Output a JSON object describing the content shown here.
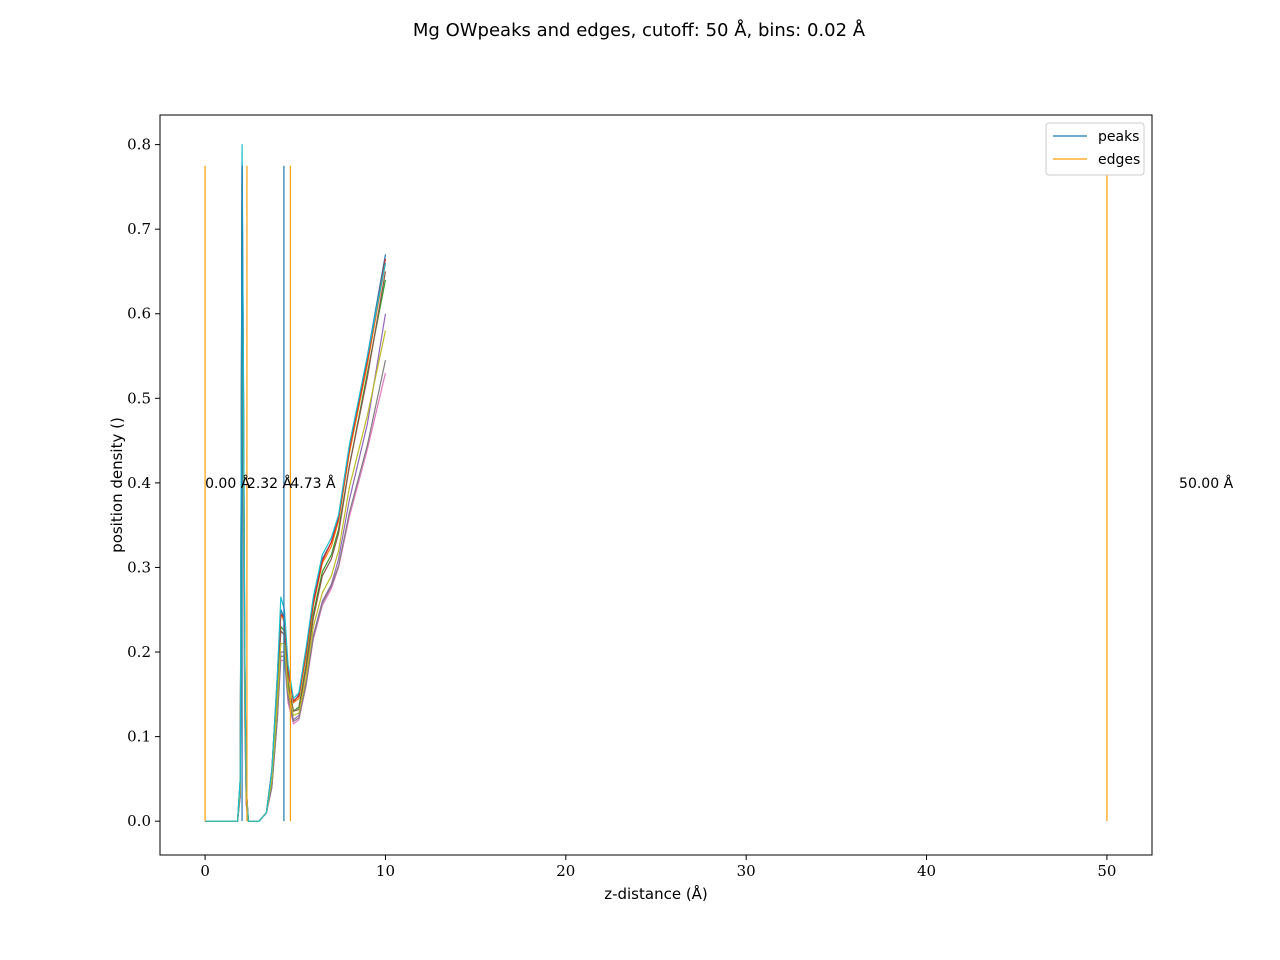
{
  "chart_data": {
    "type": "line",
    "title": "Mg OWpeaks and edges, cutoff: 50 Å, bins: 0.02 Å",
    "xlabel": "z-distance (Å)",
    "ylabel": "position density ()",
    "xlim": [
      -2.5,
      52.5
    ],
    "ylim": [
      -0.04,
      0.835
    ],
    "xticks": [
      0,
      10,
      20,
      30,
      40,
      50
    ],
    "yticks": [
      0.0,
      0.1,
      0.2,
      0.3,
      0.4,
      0.5,
      0.6,
      0.7,
      0.8
    ],
    "grid": false,
    "legend_position": "top-right",
    "legend": [
      {
        "label": "peaks",
        "color": "#1f77b4"
      },
      {
        "label": "edges",
        "color": "#ff9f0a"
      }
    ],
    "density_curves": {
      "x": [
        0.0,
        1.8,
        1.95,
        2.05,
        2.12,
        2.2,
        2.28,
        2.4,
        2.6,
        3.0,
        3.4,
        3.7,
        4.0,
        4.2,
        4.4,
        4.6,
        4.9,
        5.2,
        5.6,
        6.0,
        6.5,
        7.0,
        7.4,
        8.0,
        9.0,
        10.0
      ],
      "series": [
        {
          "color": "#1f77b4",
          "values": [
            0,
            0,
            0.05,
            0.78,
            0.55,
            0.2,
            0.04,
            0,
            0,
            0,
            0.01,
            0.06,
            0.17,
            0.25,
            0.24,
            0.18,
            0.14,
            0.15,
            0.2,
            0.26,
            0.31,
            0.33,
            0.36,
            0.44,
            0.55,
            0.67
          ]
        },
        {
          "color": "#ff7f0e",
          "values": [
            0,
            0,
            0.04,
            0.75,
            0.52,
            0.19,
            0.035,
            0,
            0,
            0,
            0.01,
            0.06,
            0.17,
            0.245,
            0.235,
            0.175,
            0.14,
            0.145,
            0.195,
            0.255,
            0.305,
            0.325,
            0.355,
            0.435,
            0.54,
            0.66
          ]
        },
        {
          "color": "#2ca02c",
          "values": [
            0,
            0,
            0.05,
            0.72,
            0.5,
            0.18,
            0.03,
            0,
            0,
            0,
            0.01,
            0.05,
            0.15,
            0.23,
            0.225,
            0.165,
            0.13,
            0.135,
            0.185,
            0.245,
            0.295,
            0.315,
            0.345,
            0.42,
            0.53,
            0.64
          ]
        },
        {
          "color": "#d62728",
          "values": [
            0,
            0,
            0.04,
            0.77,
            0.54,
            0.2,
            0.04,
            0,
            0,
            0,
            0.01,
            0.06,
            0.16,
            0.245,
            0.24,
            0.178,
            0.142,
            0.148,
            0.2,
            0.258,
            0.308,
            0.33,
            0.358,
            0.44,
            0.545,
            0.665
          ]
        },
        {
          "color": "#9467bd",
          "values": [
            0,
            0,
            0.03,
            0.6,
            0.4,
            0.15,
            0.03,
            0,
            0,
            0,
            0.01,
            0.04,
            0.12,
            0.2,
            0.2,
            0.15,
            0.12,
            0.125,
            0.165,
            0.22,
            0.26,
            0.28,
            0.31,
            0.38,
            0.47,
            0.6
          ]
        },
        {
          "color": "#8c564b",
          "values": [
            0,
            0,
            0.04,
            0.7,
            0.48,
            0.17,
            0.03,
            0,
            0,
            0,
            0.01,
            0.05,
            0.15,
            0.225,
            0.22,
            0.16,
            0.13,
            0.132,
            0.18,
            0.24,
            0.29,
            0.31,
            0.34,
            0.42,
            0.525,
            0.65
          ]
        },
        {
          "color": "#e377c2",
          "values": [
            0,
            0,
            0.03,
            0.5,
            0.35,
            0.12,
            0.02,
            0,
            0,
            0,
            0.01,
            0.04,
            0.12,
            0.19,
            0.19,
            0.14,
            0.115,
            0.12,
            0.16,
            0.215,
            0.255,
            0.275,
            0.3,
            0.36,
            0.44,
            0.53
          ]
        },
        {
          "color": "#7f7f7f",
          "values": [
            0,
            0,
            0.03,
            0.55,
            0.38,
            0.13,
            0.02,
            0,
            0,
            0,
            0.01,
            0.04,
            0.12,
            0.195,
            0.195,
            0.145,
            0.118,
            0.122,
            0.162,
            0.218,
            0.258,
            0.278,
            0.302,
            0.365,
            0.445,
            0.545
          ]
        },
        {
          "color": "#bcbd22",
          "values": [
            0,
            0,
            0.04,
            0.65,
            0.45,
            0.16,
            0.03,
            0,
            0,
            0,
            0.01,
            0.05,
            0.14,
            0.21,
            0.21,
            0.155,
            0.125,
            0.128,
            0.17,
            0.23,
            0.27,
            0.29,
            0.32,
            0.395,
            0.48,
            0.58
          ]
        },
        {
          "color": "#17becf",
          "values": [
            0,
            0,
            0.05,
            0.8,
            0.56,
            0.21,
            0.04,
            0,
            0,
            0,
            0.01,
            0.06,
            0.17,
            0.265,
            0.25,
            0.185,
            0.145,
            0.152,
            0.205,
            0.265,
            0.315,
            0.335,
            0.362,
            0.445,
            0.55,
            0.66
          ]
        }
      ]
    },
    "peaks": {
      "color": "#1f77b4",
      "x": [
        2.05,
        4.37
      ],
      "y_top": 0.775
    },
    "edges": {
      "color": "#ff9f0a",
      "x": [
        0.0,
        2.32,
        4.73,
        50.0
      ],
      "y_top": 0.775
    },
    "annotations": [
      {
        "x": 0.0,
        "y": 0.4,
        "text": "0.00 Å"
      },
      {
        "x": 2.32,
        "y": 0.4,
        "text": "2.32 Å"
      },
      {
        "x": 4.73,
        "y": 0.4,
        "text": "4.73 Å"
      },
      {
        "x": 54.0,
        "y": 0.4,
        "text": "50.00 Å"
      }
    ]
  }
}
